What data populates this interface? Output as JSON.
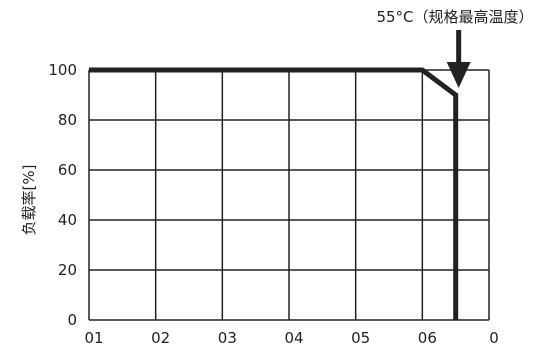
{
  "chart_data": {
    "type": "line",
    "x_tick_labels": [
      "01",
      "02",
      "03",
      "04",
      "05",
      "06",
      "0"
    ],
    "x_tick_values": [
      0,
      1,
      2,
      3,
      4,
      5,
      6
    ],
    "xlim": [
      0,
      6
    ],
    "ylim": [
      0,
      100
    ],
    "y_ticks": [
      0,
      20,
      40,
      60,
      80,
      100
    ],
    "ylabel": "负载率[%]",
    "xlabel": "",
    "grid": true,
    "series": [
      {
        "points": [
          {
            "x": 0,
            "y": 100
          },
          {
            "x": 5.0,
            "y": 100
          },
          {
            "x": 5.5,
            "y": 90
          },
          {
            "x": 5.5,
            "y": 0
          }
        ]
      }
    ],
    "annotations": [
      {
        "text": "55°C（规格最高温度）",
        "points_to_x": 5.5,
        "arrow": "down"
      }
    ],
    "colors": {
      "line": "#222222",
      "grid": "#222222",
      "text": "#222222"
    }
  }
}
